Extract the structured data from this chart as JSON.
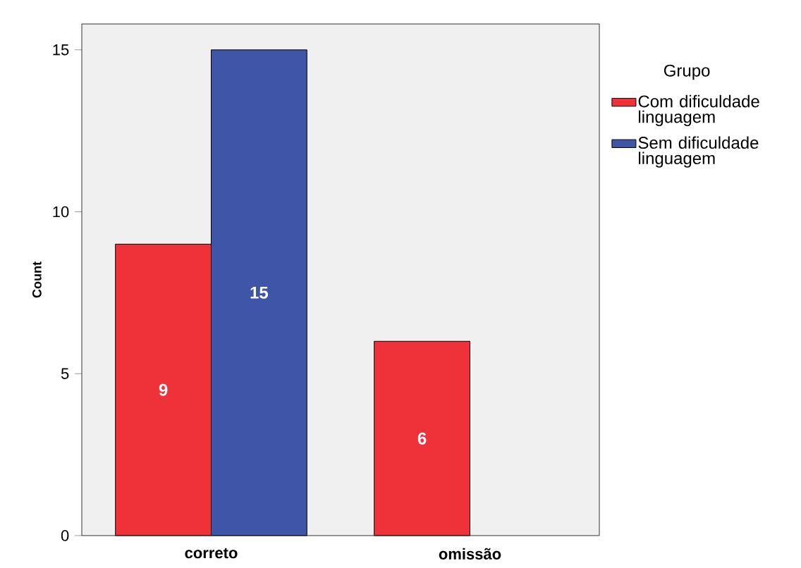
{
  "chart_data": {
    "type": "bar",
    "categories": [
      "correto",
      "omissão"
    ],
    "ylabel": "Count",
    "legend_title": "Grupo",
    "series": [
      {
        "name": "Com dificuldade linguagem",
        "color": "#ef323a",
        "values": [
          9,
          6
        ]
      },
      {
        "name": "Sem dificuldade linguagem",
        "color": "#3f55a8",
        "values": [
          15,
          null
        ]
      }
    ],
    "ylim": [
      0,
      15.8
    ],
    "yticks": [
      0,
      5,
      10,
      15
    ],
    "data_labels": true,
    "legend": "right",
    "grid": false
  }
}
